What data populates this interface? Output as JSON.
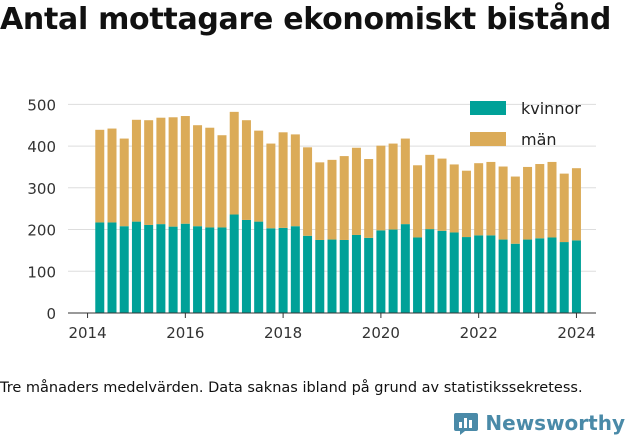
{
  "title": "Antal mottagare ekonomiskt bistånd",
  "note": "Tre månaders medelvärden. Data saknas ibland på grund av statistikssekretess.",
  "brand": {
    "name": "Newsworthy",
    "logo_icon": "bar-chart-logo-icon"
  },
  "colors": {
    "kvinnor": "#00a198",
    "man": "#dbab58",
    "grid": "#dddddd",
    "axis": "#333333"
  },
  "chart_data": {
    "type": "bar",
    "stacked": true,
    "title": "Antal mottagare ekonomiskt bistånd",
    "xlabel": "",
    "ylabel": "",
    "ylim": [
      0,
      520
    ],
    "xlim": [
      2013.6,
      2024.4
    ],
    "yticks": [
      0,
      100,
      200,
      300,
      400,
      500
    ],
    "xticks": [
      2014,
      2016,
      2018,
      2020,
      2022,
      2024
    ],
    "grid": "horizontal",
    "legend_position": "top-right",
    "x": [
      2014.25,
      2014.5,
      2014.75,
      2015.0,
      2015.25,
      2015.5,
      2015.75,
      2016.0,
      2016.25,
      2016.5,
      2016.75,
      2017.0,
      2017.25,
      2017.5,
      2017.75,
      2018.0,
      2018.25,
      2018.5,
      2018.75,
      2019.0,
      2019.25,
      2019.5,
      2019.75,
      2020.0,
      2020.25,
      2020.5,
      2020.75,
      2021.0,
      2021.25,
      2021.5,
      2021.75,
      2022.0,
      2022.25,
      2022.5,
      2022.75,
      2023.0,
      2023.25,
      2023.5,
      2023.75,
      2024.0
    ],
    "series": [
      {
        "name": "kvinnor",
        "values": [
          217,
          217,
          208,
          219,
          211,
          213,
          207,
          214,
          208,
          205,
          205,
          236,
          223,
          219,
          203,
          204,
          208,
          185,
          175,
          176,
          175,
          187,
          180,
          198,
          200,
          213,
          181,
          201,
          197,
          193,
          182,
          186,
          186,
          176,
          166,
          176,
          179,
          181,
          170,
          174
        ]
      },
      {
        "name": "män",
        "values": [
          222,
          225,
          210,
          244,
          251,
          255,
          262,
          258,
          242,
          239,
          221,
          246,
          239,
          218,
          203,
          229,
          220,
          212,
          186,
          191,
          201,
          209,
          189,
          203,
          206,
          205,
          173,
          178,
          173,
          163,
          159,
          173,
          176,
          175,
          161,
          174,
          178,
          181,
          164,
          173
        ]
      }
    ]
  }
}
